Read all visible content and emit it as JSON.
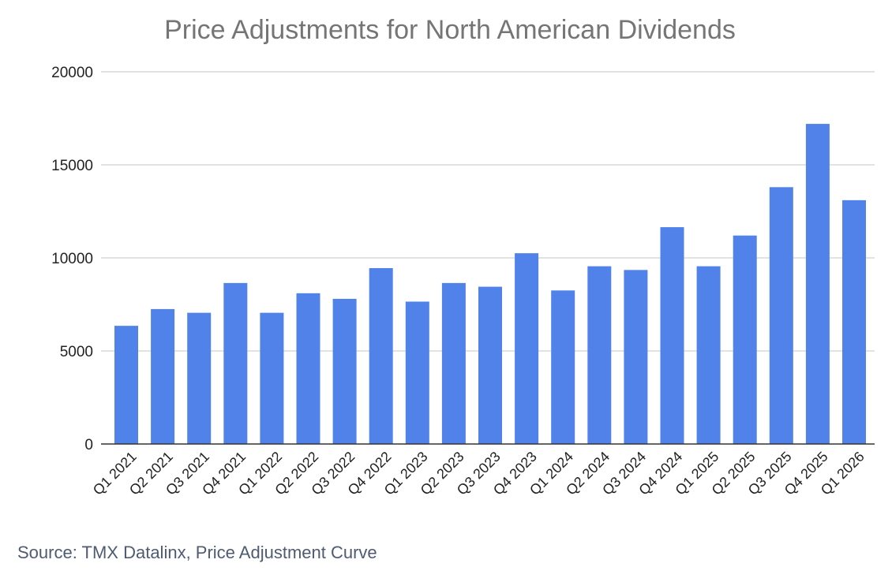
{
  "chart_data": {
    "type": "bar",
    "title": "Price Adjustments for North American Dividends",
    "xlabel": "",
    "ylabel": "",
    "categories": [
      "Q1 2021",
      "Q2 2021",
      "Q3 2021",
      "Q4 2021",
      "Q1 2022",
      "Q2 2022",
      "Q3 2022",
      "Q4 2022",
      "Q1 2023",
      "Q2 2023",
      "Q3 2023",
      "Q4 2023",
      "Q1 2024",
      "Q2 2024",
      "Q3 2024",
      "Q4 2024",
      "Q1 2025",
      "Q2 2025",
      "Q3 2025",
      "Q4 2025",
      "Q1 2026"
    ],
    "values": [
      6350,
      7250,
      7050,
      8650,
      7050,
      8100,
      7800,
      9450,
      7650,
      8650,
      8450,
      10250,
      8250,
      9550,
      9350,
      11650,
      9550,
      11200,
      13800,
      17200,
      13100
    ],
    "ylim": [
      0,
      20000
    ],
    "yticks": [
      0,
      5000,
      10000,
      15000,
      20000
    ],
    "grid": true,
    "legend": "none",
    "bar_color": "#5182ea"
  },
  "source": "Source: TMX Datalinx, Price Adjustment Curve"
}
